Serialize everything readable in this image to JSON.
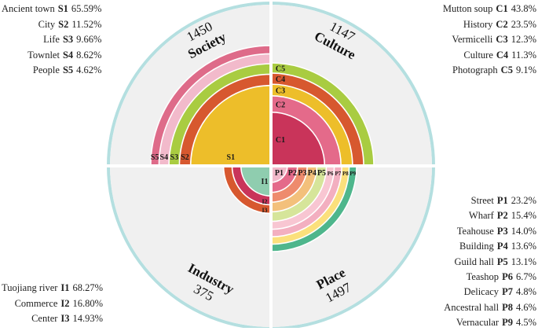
{
  "chart_data": {
    "type": "radial-bar",
    "quadrants": [
      {
        "key": "society",
        "name": "Society",
        "total": 1450,
        "items": [
          {
            "code": "S1",
            "label": "Ancient town",
            "percent": 65.59,
            "percent_text": "65.59%",
            "color": "#EDBE2A"
          },
          {
            "code": "S2",
            "label": "City",
            "percent": 11.52,
            "percent_text": "11.52%",
            "color": "#D7582F"
          },
          {
            "code": "S3",
            "label": "Life",
            "percent": 9.66,
            "percent_text": "9.66%",
            "color": "#A9CC41"
          },
          {
            "code": "S4",
            "label": "Townlet",
            "percent": 8.62,
            "percent_text": "8.62%",
            "color": "#F2BACB"
          },
          {
            "code": "S5",
            "label": "People",
            "percent": 4.62,
            "percent_text": "4.62%",
            "color": "#DE6B89"
          }
        ]
      },
      {
        "key": "culture",
        "name": "Culture",
        "total": 1147,
        "items": [
          {
            "code": "C1",
            "label": "Mutton soup",
            "percent": 43.8,
            "percent_text": "43.8%",
            "color": "#C9345A"
          },
          {
            "code": "C2",
            "label": "History",
            "percent": 23.5,
            "percent_text": "23.5%",
            "color": "#E46A8A"
          },
          {
            "code": "C3",
            "label": "Vermicelli",
            "percent": 12.3,
            "percent_text": "12.3%",
            "color": "#EDBE2A"
          },
          {
            "code": "C4",
            "label": "Culture",
            "percent": 11.3,
            "percent_text": "11.3%",
            "color": "#D7582F"
          },
          {
            "code": "C5",
            "label": "Photograph",
            "percent": 9.1,
            "percent_text": "9.1%",
            "color": "#A9CC41"
          }
        ]
      },
      {
        "key": "place",
        "name": "Place",
        "total": 1497,
        "items": [
          {
            "code": "P1",
            "label": "Street",
            "percent": 23.2,
            "percent_text": "23.2%",
            "color": "#F2B9CA"
          },
          {
            "code": "P2",
            "label": "Wharf",
            "percent": 15.4,
            "percent_text": "15.4%",
            "color": "#E46A8A"
          },
          {
            "code": "P3",
            "label": "Teahouse",
            "percent": 14.0,
            "percent_text": "14.0%",
            "color": "#EE8B6D"
          },
          {
            "code": "P4",
            "label": "Building",
            "percent": 13.6,
            "percent_text": "13.6%",
            "color": "#F3C07B"
          },
          {
            "code": "P5",
            "label": "Guild hall",
            "percent": 13.1,
            "percent_text": "13.1%",
            "color": "#D6E59A"
          },
          {
            "code": "P6",
            "label": "Teashop",
            "percent": 6.7,
            "percent_text": "6.7%",
            "color": "#F8C6D2"
          },
          {
            "code": "P7",
            "label": "Delicacy",
            "percent": 4.8,
            "percent_text": "4.8%",
            "color": "#F3AFC0"
          },
          {
            "code": "P8",
            "label": "Ancestral hall",
            "percent": 4.6,
            "percent_text": "4.6%",
            "color": "#FBE07C"
          },
          {
            "code": "P9",
            "label": "Vernacular",
            "percent": 4.5,
            "percent_text": "4.5%",
            "color": "#4EB68C"
          }
        ]
      },
      {
        "key": "industry",
        "name": "Industry",
        "total": 375,
        "items": [
          {
            "code": "I1",
            "label": "Tuojiang river",
            "percent": 68.27,
            "percent_text": "68.27%",
            "color": "#8FCDAF"
          },
          {
            "code": "I2",
            "label": "Commerce",
            "percent": 16.8,
            "percent_text": "16.80%",
            "color": "#C9345A"
          },
          {
            "code": "I3",
            "label": "Center",
            "percent": 14.93,
            "percent_text": "14.93%",
            "color": "#D7582F"
          }
        ]
      }
    ],
    "colors": {
      "background_disc": "#F0F0F0",
      "outer_ring": "#B4DFE0",
      "divider": "#FFFFFF"
    }
  }
}
